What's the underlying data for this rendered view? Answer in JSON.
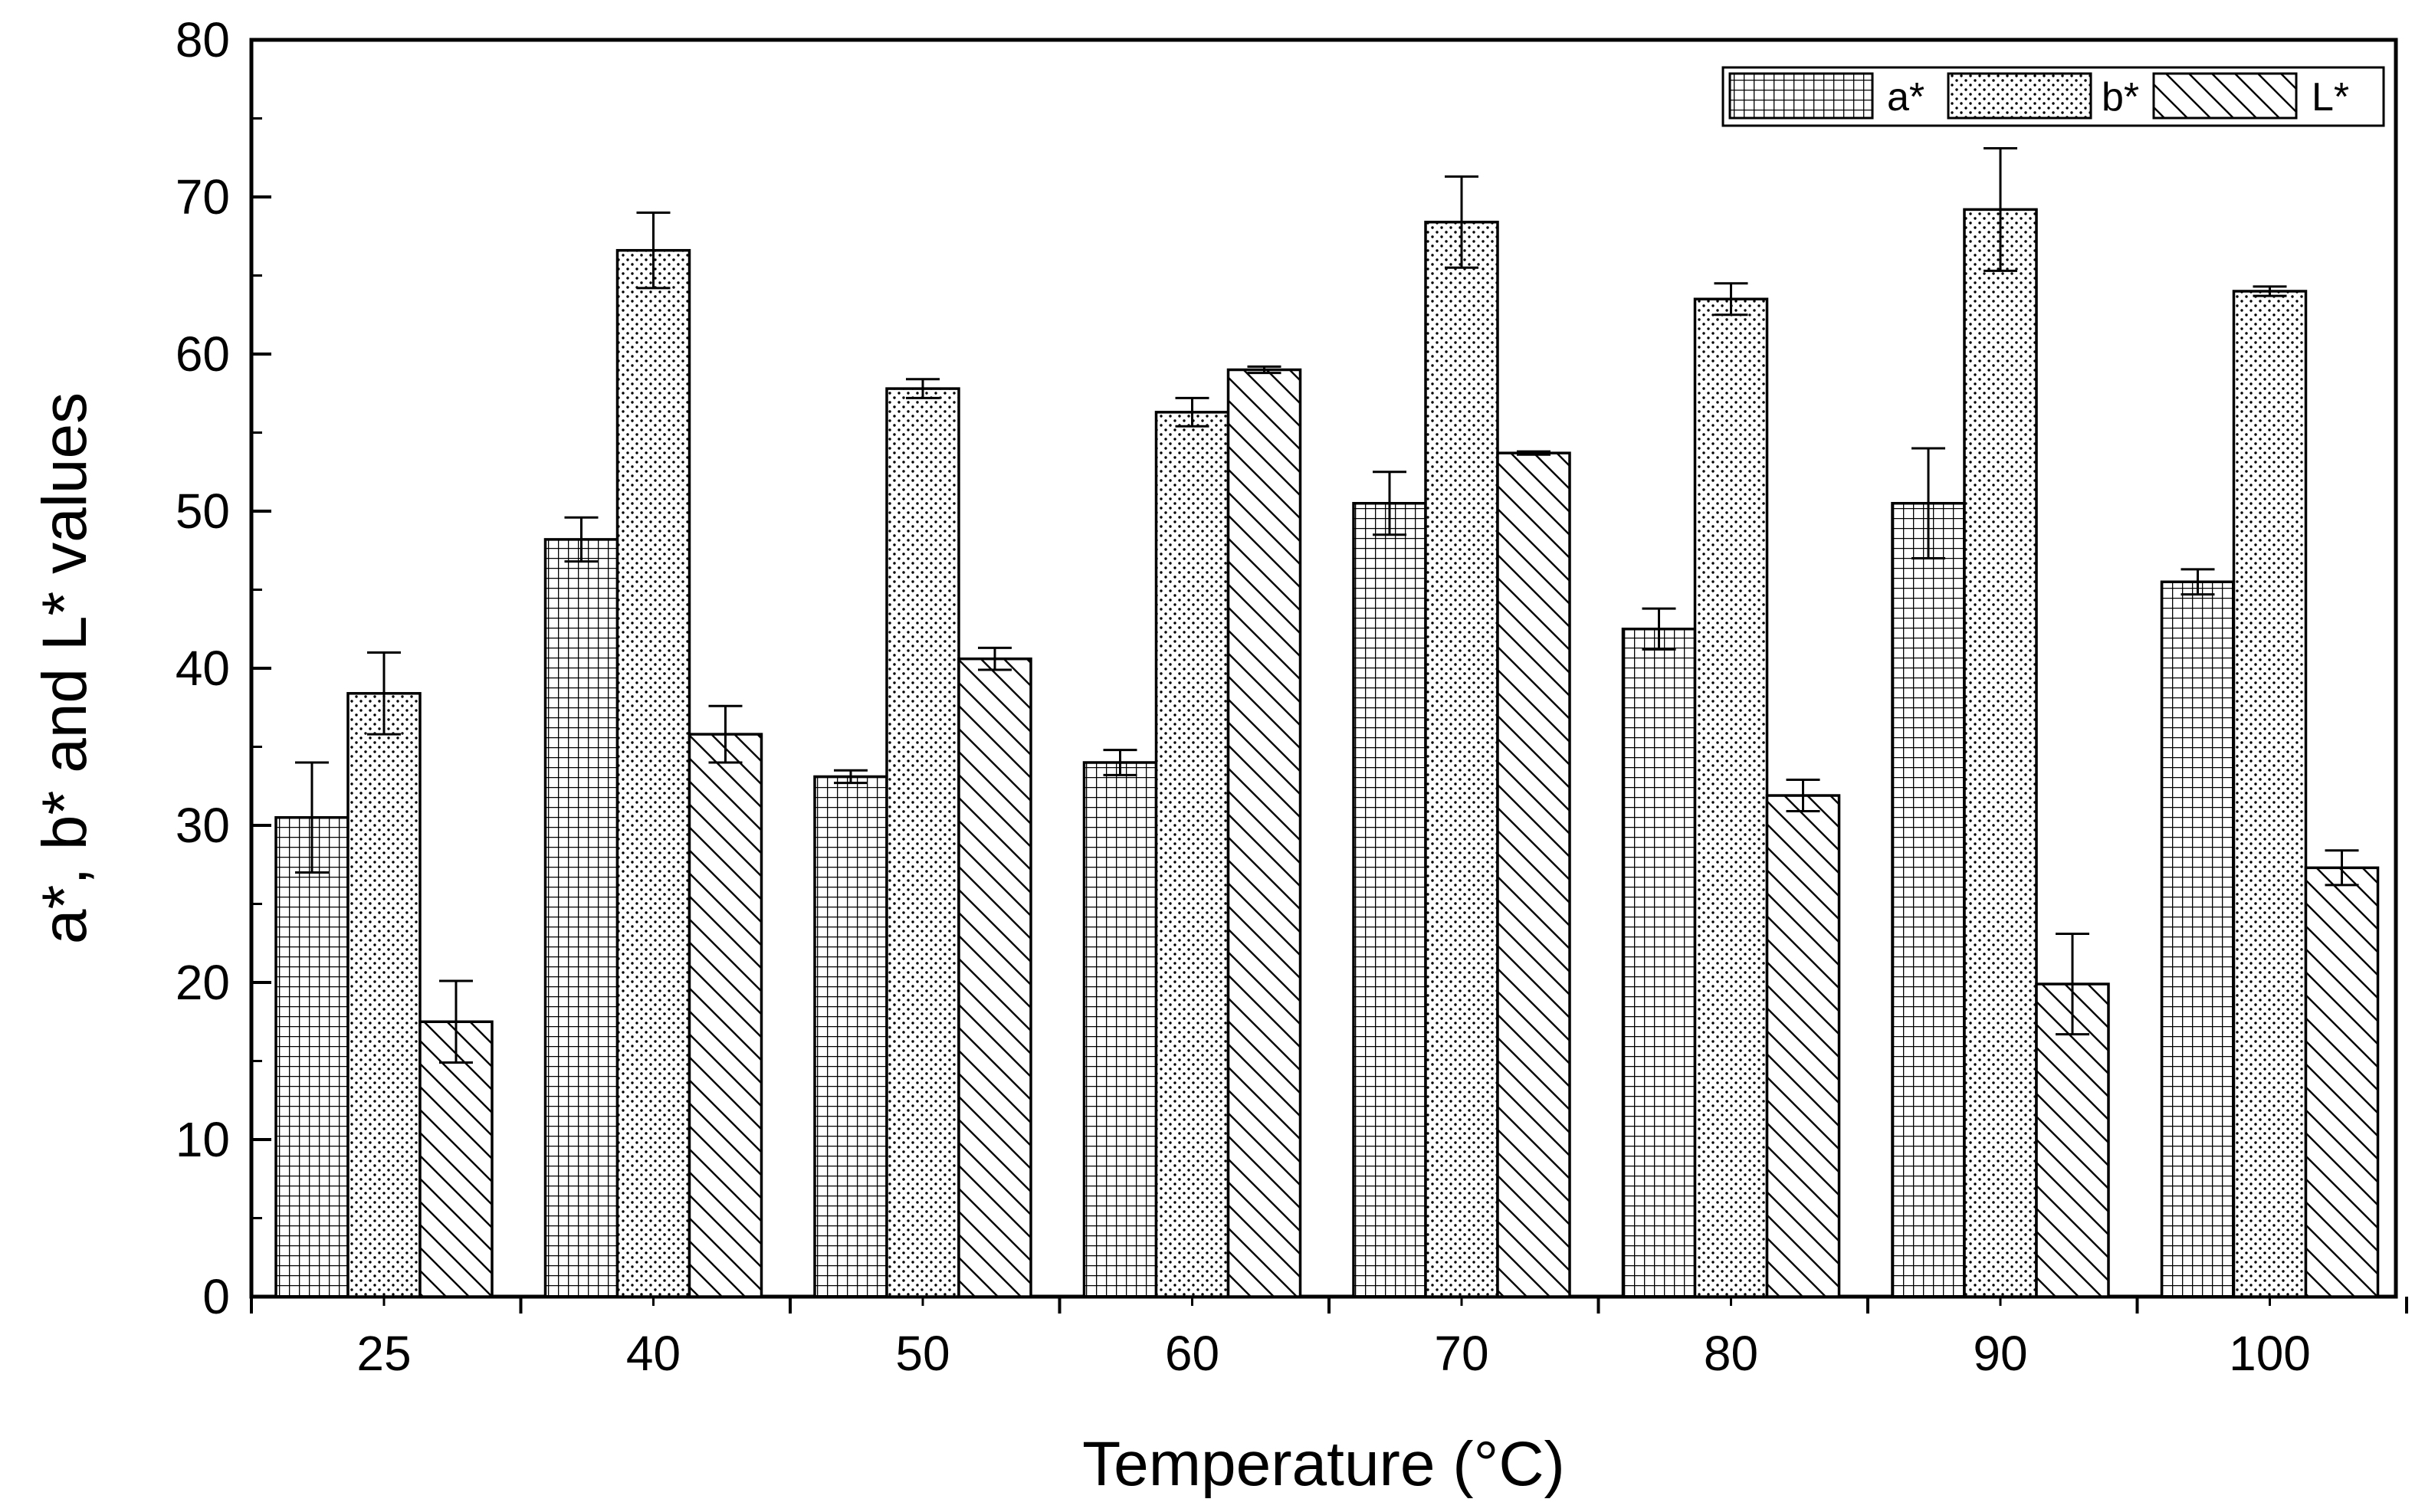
{
  "chart_data": {
    "type": "bar",
    "title": "",
    "xlabel": "Temperature (°C)",
    "ylabel": "a*, b* and L* values",
    "categories": [
      "25",
      "40",
      "50",
      "60",
      "70",
      "80",
      "90",
      "100"
    ],
    "ylim": [
      0,
      80
    ],
    "yticks": [
      "0",
      "10",
      "20",
      "30",
      "40",
      "50",
      "60",
      "70",
      "80"
    ],
    "legend_position": "top-right",
    "grid": false,
    "error_bars": true,
    "series": [
      {
        "name": "a*",
        "pattern": "grid",
        "values": [
          30.5,
          48.2,
          33.1,
          34.0,
          50.5,
          42.5,
          50.5,
          45.5
        ],
        "errors": [
          3.5,
          1.4,
          0.4,
          0.8,
          2.0,
          1.3,
          3.5,
          0.8
        ]
      },
      {
        "name": "b*",
        "pattern": "dots",
        "values": [
          38.4,
          66.6,
          57.8,
          56.3,
          68.4,
          63.5,
          69.2,
          64.0
        ],
        "errors": [
          2.6,
          2.4,
          0.6,
          0.9,
          2.9,
          1.0,
          3.9,
          0.3
        ]
      },
      {
        "name": "L*",
        "pattern": "diagonal",
        "values": [
          17.5,
          35.8,
          40.6,
          59.0,
          53.7,
          31.9,
          19.9,
          27.3
        ],
        "errors": [
          2.6,
          1.8,
          0.7,
          0.2,
          0.1,
          1.0,
          3.2,
          1.1
        ]
      }
    ],
    "colors": {
      "ink": "#000000",
      "background": "#ffffff"
    }
  }
}
